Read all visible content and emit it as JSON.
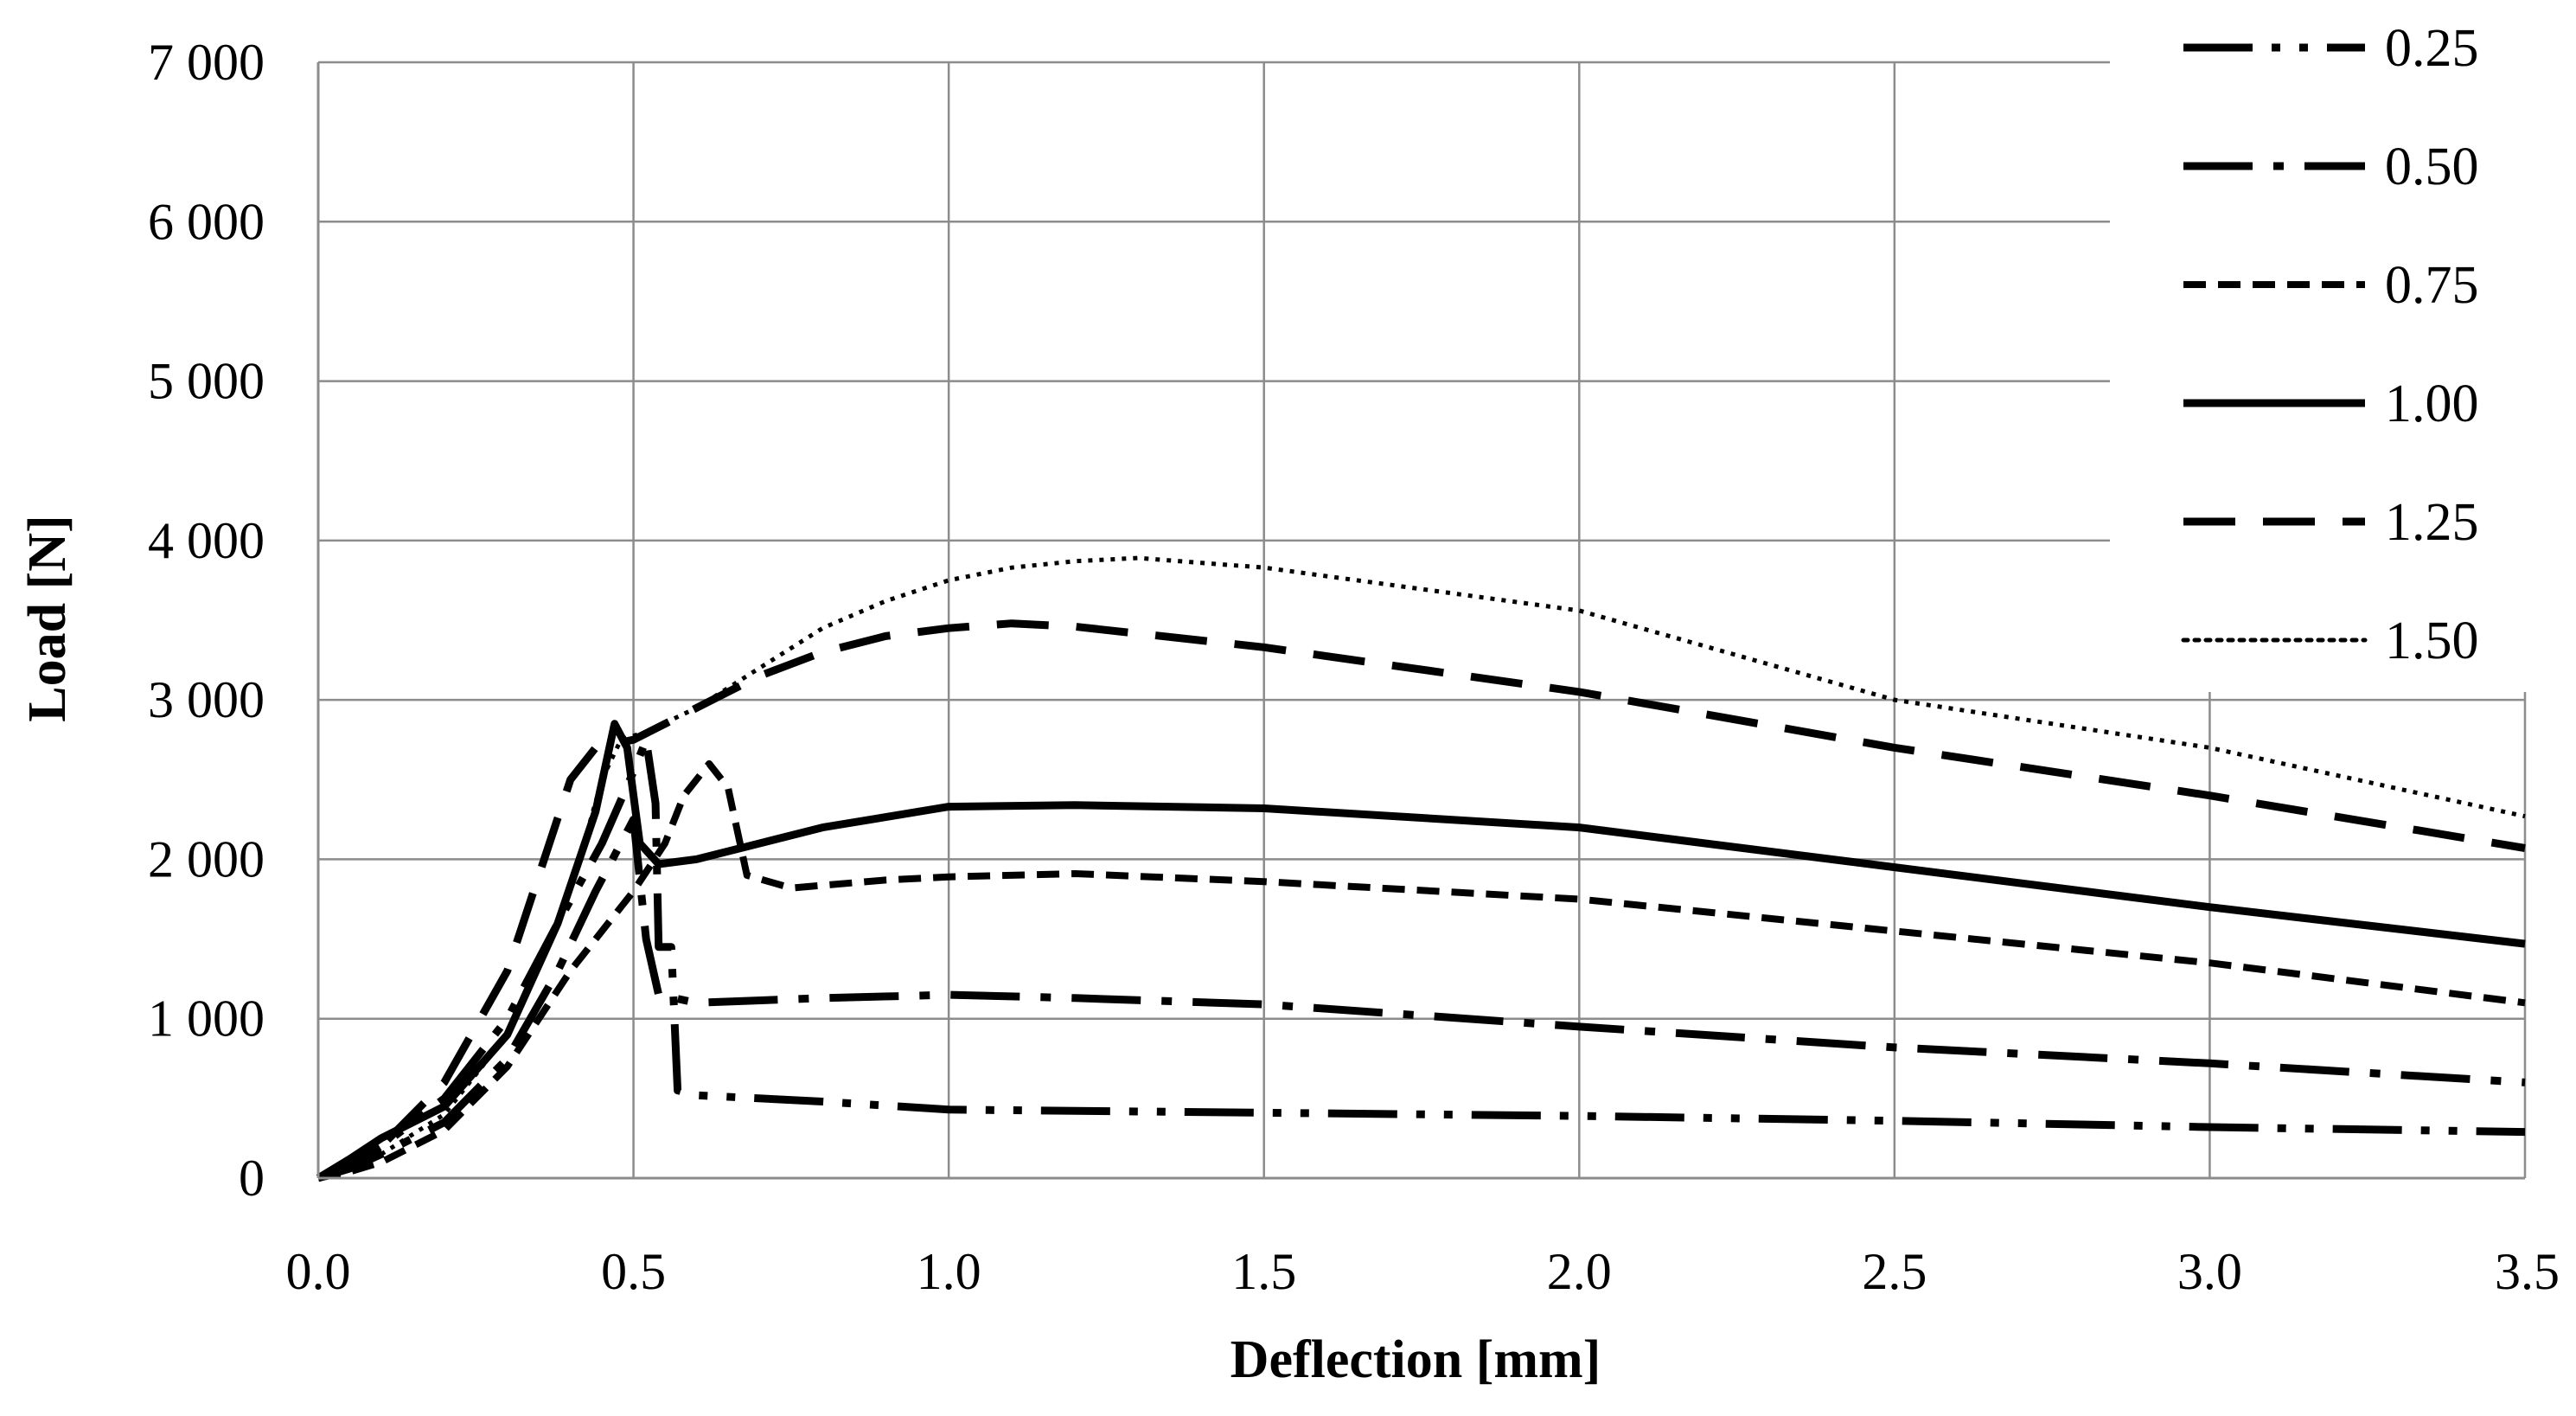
{
  "chart_data": {
    "type": "line",
    "title": "",
    "xlabel": "Deflection [mm]",
    "ylabel": "Load [N]",
    "xlim": [
      0,
      3.5
    ],
    "ylim": [
      0,
      7000
    ],
    "grid": true,
    "legend_position": "top-right",
    "x_ticks": [
      0,
      0.5,
      1,
      1.5,
      2,
      2.5,
      3,
      3.5
    ],
    "x_tick_labels": [
      "0.0",
      "0.5",
      "1.0",
      "1.5",
      "2.0",
      "2.5",
      "3.0",
      "3.5"
    ],
    "y_ticks": [
      0,
      1000,
      2000,
      3000,
      4000,
      5000,
      6000,
      7000
    ],
    "y_tick_labels": [
      "0",
      "1 000",
      "2 000",
      "3 000",
      "4 000",
      "5 000",
      "6 000",
      "7 000"
    ],
    "series": [
      {
        "name": "0.25",
        "style": "long-dash-dot-dot",
        "points": [
          [
            0,
            0
          ],
          [
            0.05,
            80
          ],
          [
            0.1,
            200
          ],
          [
            0.2,
            500
          ],
          [
            0.3,
            1000
          ],
          [
            0.38,
            1600
          ],
          [
            0.45,
            2100
          ],
          [
            0.5,
            2550
          ],
          [
            0.52,
            2750
          ],
          [
            0.535,
            2350
          ],
          [
            0.54,
            1450
          ],
          [
            0.56,
            1450
          ],
          [
            0.57,
            550
          ],
          [
            0.6,
            520
          ],
          [
            0.8,
            480
          ],
          [
            1.0,
            430
          ],
          [
            1.5,
            410
          ],
          [
            2.0,
            390
          ],
          [
            2.5,
            360
          ],
          [
            3.0,
            320
          ],
          [
            3.5,
            290
          ]
        ]
      },
      {
        "name": "0.50",
        "style": "long-dash-dot",
        "points": [
          [
            0,
            0
          ],
          [
            0.05,
            60
          ],
          [
            0.1,
            150
          ],
          [
            0.2,
            350
          ],
          [
            0.3,
            750
          ],
          [
            0.38,
            1300
          ],
          [
            0.44,
            1800
          ],
          [
            0.48,
            2100
          ],
          [
            0.5,
            2250
          ],
          [
            0.52,
            1500
          ],
          [
            0.54,
            1150
          ],
          [
            0.6,
            1100
          ],
          [
            0.8,
            1130
          ],
          [
            1.0,
            1150
          ],
          [
            1.2,
            1130
          ],
          [
            1.5,
            1090
          ],
          [
            2.0,
            950
          ],
          [
            2.5,
            820
          ],
          [
            3.0,
            720
          ],
          [
            3.5,
            600
          ]
        ]
      },
      {
        "name": "0.75",
        "style": "short-dash",
        "points": [
          [
            0,
            0
          ],
          [
            0.05,
            40
          ],
          [
            0.1,
            100
          ],
          [
            0.2,
            300
          ],
          [
            0.3,
            700
          ],
          [
            0.4,
            1300
          ],
          [
            0.5,
            1800
          ],
          [
            0.55,
            2100
          ],
          [
            0.58,
            2400
          ],
          [
            0.62,
            2600
          ],
          [
            0.65,
            2450
          ],
          [
            0.68,
            1900
          ],
          [
            0.75,
            1820
          ],
          [
            0.9,
            1870
          ],
          [
            1.0,
            1890
          ],
          [
            1.2,
            1910
          ],
          [
            1.5,
            1860
          ],
          [
            2.0,
            1750
          ],
          [
            2.5,
            1550
          ],
          [
            3.0,
            1350
          ],
          [
            3.5,
            1100
          ]
        ]
      },
      {
        "name": "1.00",
        "style": "solid",
        "points": [
          [
            0,
            0
          ],
          [
            0.05,
            120
          ],
          [
            0.1,
            250
          ],
          [
            0.2,
            450
          ],
          [
            0.3,
            900
          ],
          [
            0.38,
            1600
          ],
          [
            0.44,
            2300
          ],
          [
            0.47,
            2850
          ],
          [
            0.49,
            2700
          ],
          [
            0.51,
            2100
          ],
          [
            0.54,
            1970
          ],
          [
            0.6,
            2000
          ],
          [
            0.7,
            2100
          ],
          [
            0.8,
            2200
          ],
          [
            1.0,
            2330
          ],
          [
            1.2,
            2340
          ],
          [
            1.5,
            2320
          ],
          [
            2.0,
            2200
          ],
          [
            2.5,
            1950
          ],
          [
            3.0,
            1700
          ],
          [
            3.5,
            1470
          ]
        ]
      },
      {
        "name": "1.25",
        "style": "long-dash",
        "points": [
          [
            0,
            0
          ],
          [
            0.05,
            100
          ],
          [
            0.1,
            200
          ],
          [
            0.2,
            600
          ],
          [
            0.3,
            1300
          ],
          [
            0.35,
            1900
          ],
          [
            0.4,
            2500
          ],
          [
            0.44,
            2700
          ],
          [
            0.5,
            2750
          ],
          [
            0.55,
            2850
          ],
          [
            0.6,
            2950
          ],
          [
            0.7,
            3150
          ],
          [
            0.8,
            3300
          ],
          [
            0.9,
            3400
          ],
          [
            1.0,
            3450
          ],
          [
            1.1,
            3480
          ],
          [
            1.2,
            3460
          ],
          [
            1.5,
            3330
          ],
          [
            2.0,
            3050
          ],
          [
            2.5,
            2700
          ],
          [
            3.0,
            2400
          ],
          [
            3.5,
            2070
          ]
        ]
      },
      {
        "name": "1.50",
        "style": "dotted",
        "points": [
          [
            0,
            0
          ],
          [
            0.05,
            60
          ],
          [
            0.1,
            150
          ],
          [
            0.2,
            400
          ],
          [
            0.3,
            900
          ],
          [
            0.4,
            1800
          ],
          [
            0.45,
            2500
          ],
          [
            0.48,
            2750
          ],
          [
            0.52,
            2800
          ],
          [
            0.6,
            2950
          ],
          [
            0.7,
            3200
          ],
          [
            0.8,
            3450
          ],
          [
            0.9,
            3620
          ],
          [
            1.0,
            3750
          ],
          [
            1.1,
            3830
          ],
          [
            1.2,
            3870
          ],
          [
            1.3,
            3890
          ],
          [
            1.5,
            3830
          ],
          [
            2.0,
            3560
          ],
          [
            2.5,
            3000
          ],
          [
            3.0,
            2700
          ],
          [
            3.5,
            2270
          ]
        ]
      }
    ]
  }
}
